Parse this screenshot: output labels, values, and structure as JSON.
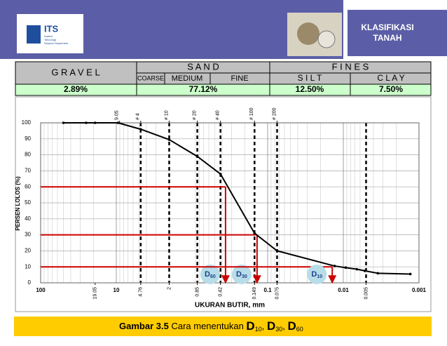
{
  "header": {
    "title": [
      "KLASIFIKASI",
      "TANAH"
    ]
  },
  "logo": {
    "name": "ITS",
    "subtitle": [
      "Institut",
      "Teknologi",
      "Sepuluh Nopember"
    ]
  },
  "classification": {
    "groups": [
      {
        "name": "G R A V E L",
        "percent": "2.89%"
      },
      {
        "name": "S A N D",
        "percent": "77.12%"
      },
      {
        "name": "F I N E S"
      }
    ],
    "subgroups": [
      "COARSE",
      "MEDIUM",
      "FINE",
      "S I L T",
      "C L A Y"
    ],
    "fines_percent": [
      "12.50%",
      "7.50%"
    ]
  },
  "chart_data": {
    "type": "line",
    "xlabel": "UKURAN BUTIR, mm",
    "ylabel": "PERSEN LOLOS (%)",
    "xscale": "log",
    "xlim": [
      100,
      0.001
    ],
    "ylim": [
      0,
      100
    ],
    "yticks": [
      0,
      10,
      20,
      30,
      40,
      50,
      60,
      70,
      80,
      90,
      100
    ],
    "grid": true,
    "xticks": [
      100,
      10,
      0.1,
      0.01,
      0.001
    ],
    "sieve_ticks": [
      19.05,
      4.76,
      2,
      0.85,
      0.42,
      0.149,
      0.075,
      0.005
    ],
    "top_ticks": [
      9.05,
      {
        "value": 4.76,
        "label": "# 4"
      },
      {
        "value": 2,
        "label": "# 10"
      },
      {
        "value": 0.85,
        "label": "# 20"
      },
      {
        "value": 0.42,
        "label": "# 40"
      },
      {
        "value": 0.149,
        "label": "# 100"
      },
      {
        "value": 0.075,
        "label": "# 200"
      }
    ],
    "dashed_lines": [
      4.76,
      2,
      0.85,
      0.42,
      0.149,
      0.075,
      0.005
    ],
    "color": "#000000",
    "x": [
      50,
      25,
      19.05,
      9.5,
      4.76,
      2,
      0.85,
      0.42,
      0.149,
      0.075,
      0.013,
      0.0093,
      0.0066,
      0.0052,
      0.0035,
      0.0013
    ],
    "values": [
      100,
      100,
      100,
      100,
      96,
      89.5,
      79,
      68,
      31,
      20,
      10.5,
      9.5,
      8.5,
      7.5,
      6,
      5.5
    ],
    "marker_color": "#cc0000",
    "d_markers": [
      {
        "label": "D",
        "x": 0.36,
        "y": 60
      },
      {
        "label": "D",
        "x": 0.138,
        "y": 30
      },
      {
        "label": "D",
        "x": 0.014,
        "y": 10
      }
    ]
  },
  "caption": {
    "label": "Gambar 3.5",
    "text": "Cara menentukan",
    "terms": [
      {
        "main": "D",
        "sub": "10"
      },
      {
        "main": "D",
        "sub": "30"
      },
      {
        "main": "D",
        "sub": "60"
      }
    ],
    "separator": ","
  }
}
